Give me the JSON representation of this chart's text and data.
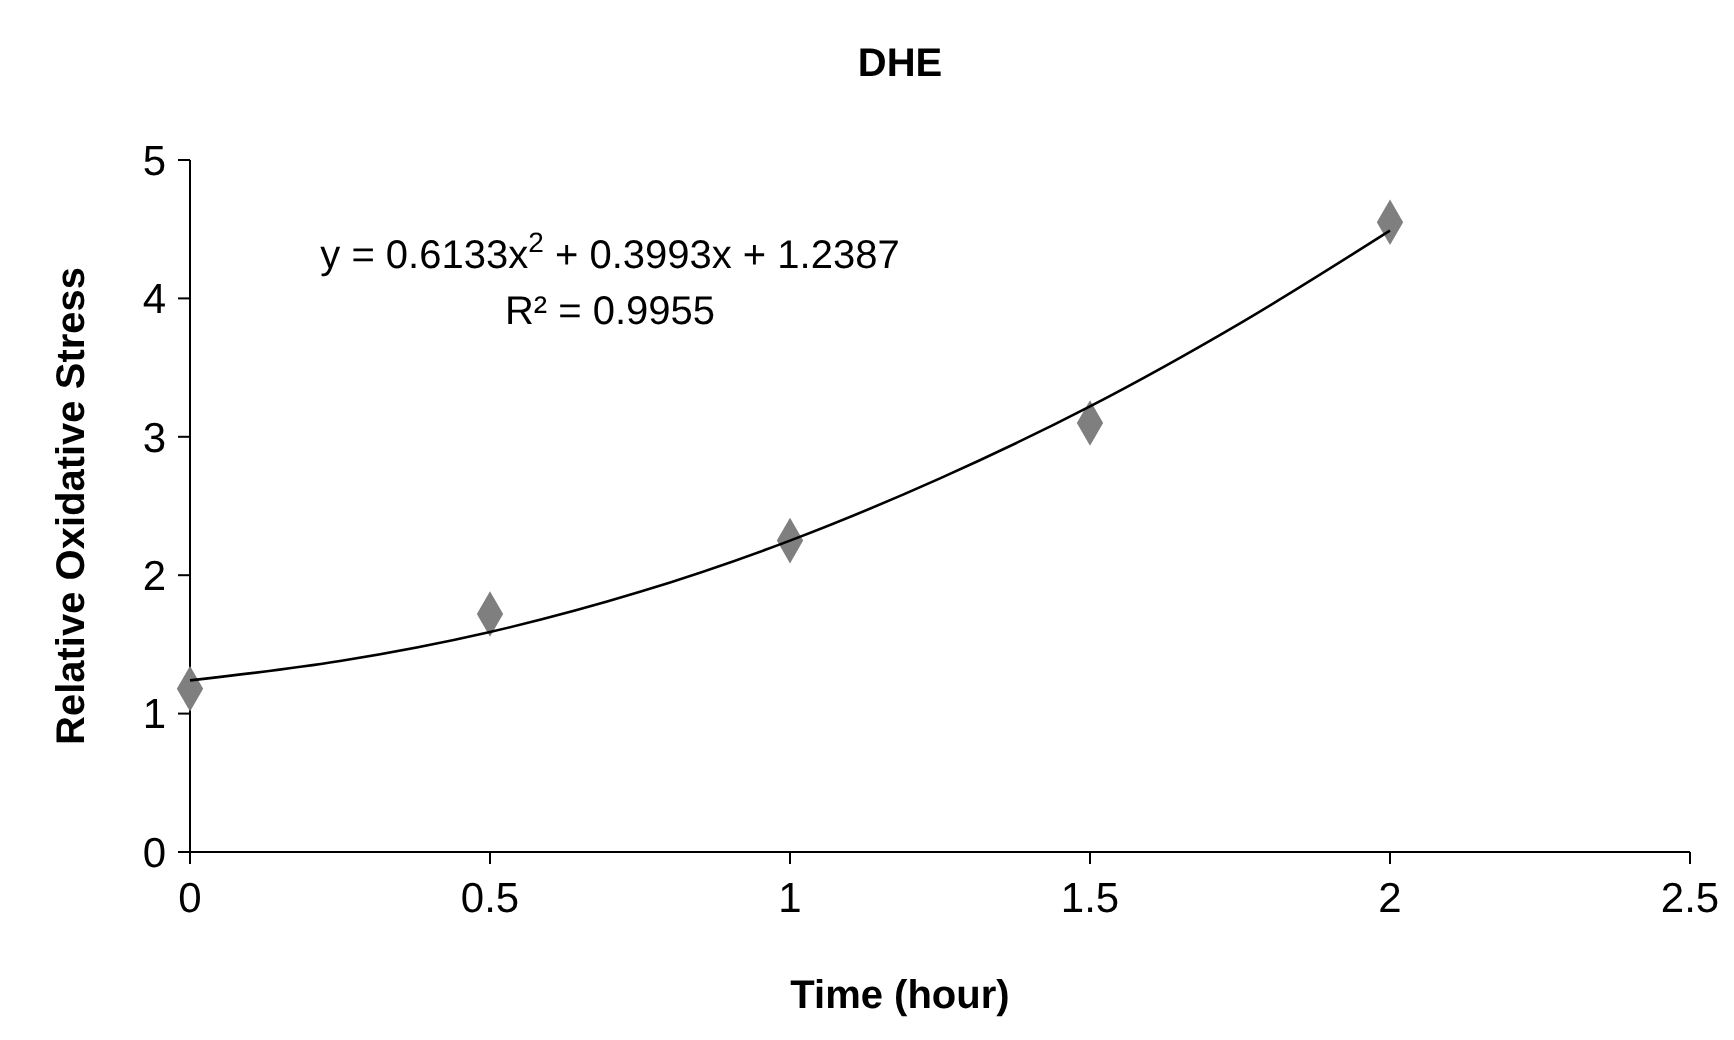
{
  "chart_data": {
    "type": "scatter",
    "title": "DHE",
    "xlabel": "Time (hour)",
    "ylabel": "Relative Oxidative Stress",
    "xlim": [
      0,
      2.5
    ],
    "xticks": [
      0,
      0.5,
      1,
      1.5,
      2,
      2.5
    ],
    "ylim": [
      0,
      5
    ],
    "yticks": [
      0,
      1,
      2,
      3,
      4,
      5
    ],
    "grid": false,
    "marker": "diamond",
    "series": [
      {
        "color": "#7f7f7f",
        "x": [
          0,
          0.5,
          1,
          1.5,
          2
        ],
        "values": [
          1.18,
          1.72,
          2.25,
          3.1,
          4.55
        ]
      },
      {
        "type": "line",
        "color": "#000000",
        "line_style": "solid",
        "marker": "none",
        "x": [
          0,
          0.25,
          0.5,
          0.75,
          1,
          1.25,
          1.5,
          1.75,
          2
        ],
        "values": [
          1.24,
          1.38,
          1.59,
          1.88,
          2.25,
          2.7,
          3.22,
          3.82,
          4.49
        ]
      }
    ],
    "annotations": [
      "y = 0.6133x$^{2}$ + 0.3993x + 1.2387",
      "R² = 0.9955"
    ]
  }
}
